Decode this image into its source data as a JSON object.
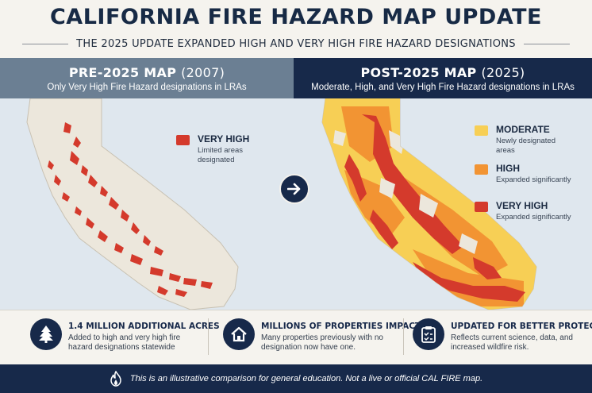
{
  "header": {
    "title": "CALIFORNIA FIRE HAZARD MAP UPDATE",
    "subtitle": "THE 2025 UPDATE EXPANDED HIGH AND VERY HIGH FIRE HAZARD DESIGNATIONS"
  },
  "left_panel": {
    "title": "PRE-2025 MAP",
    "year": "(2007)",
    "subtitle": "Only Very High Fire Hazard designations in LRAs",
    "legend": [
      {
        "label": "VERY HIGH",
        "desc": "Limited areas designated",
        "color": "#d43a2c"
      }
    ]
  },
  "right_panel": {
    "title": "POST-2025 MAP",
    "year": "(2025)",
    "subtitle": "Moderate, High, and Very High Fire Hazard designations in LRAs",
    "legend": [
      {
        "label": "MODERATE",
        "desc": "Newly designated areas",
        "color": "#f7cf55"
      },
      {
        "label": "HIGH",
        "desc": "Expanded significantly",
        "color": "#f29433"
      },
      {
        "label": "VERY HIGH",
        "desc": "Expanded significantly",
        "color": "#d43a2c"
      }
    ]
  },
  "stats": [
    {
      "title": "1.4 MILLION ADDITIONAL ACRES",
      "desc": "Added to high and very high fire hazard designations statewide",
      "icon": "tree-icon"
    },
    {
      "title": "MILLIONS OF PROPERTIES IMPACTED",
      "desc": "Many properties previously with no designation now have one.",
      "icon": "house-icon"
    },
    {
      "title": "UPDATED FOR BETTER PROTECTION",
      "desc": "Reflects current science, data, and increased wildfire risk.",
      "icon": "clipboard-icon"
    }
  ],
  "footer": {
    "text": "This is an illustrative comparison for general education. Not a live or official CAL FIRE map.",
    "icon": "flame-icon"
  },
  "colors": {
    "navy": "#17294a",
    "slate": "#6b7f93",
    "very_high": "#d43a2c",
    "high": "#f29433",
    "moderate": "#f7cf55",
    "land": "#ece7dc",
    "water": "#dfe7ee"
  }
}
